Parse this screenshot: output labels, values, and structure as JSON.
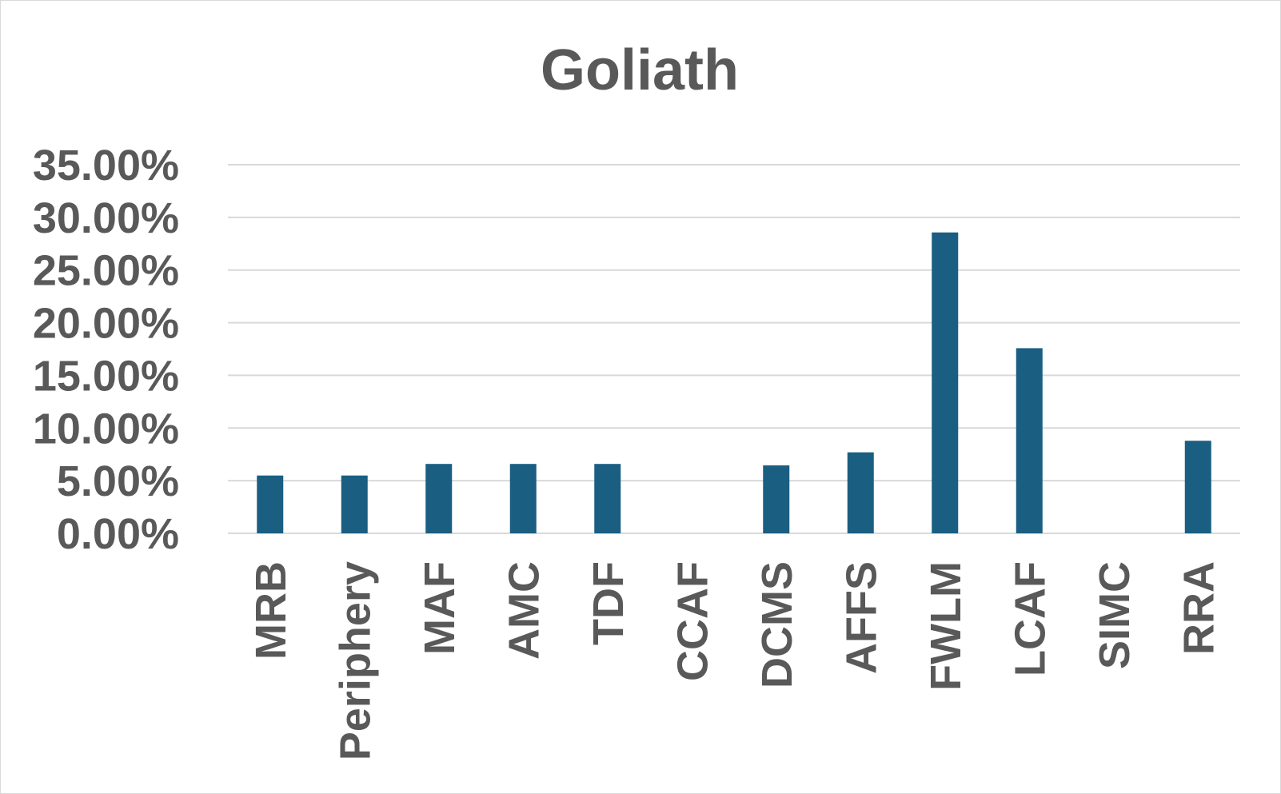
{
  "chart_data": {
    "type": "bar",
    "title": "Goliath",
    "xlabel": "",
    "ylabel": "",
    "categories": [
      "MRB",
      "Periphery",
      "MAF",
      "AMC",
      "TDF",
      "CCAF",
      "DCMS",
      "AFFS",
      "FWLM",
      "LCAF",
      "SIMC",
      "RRA"
    ],
    "values": [
      0.0549,
      0.0549,
      0.0659,
      0.0659,
      0.0659,
      0,
      0.0645,
      0.0769,
      0.2857,
      0.1758,
      0,
      0.0879
    ],
    "ylim": [
      0,
      0.35
    ],
    "yticks": [
      0,
      0.05,
      0.1,
      0.15,
      0.2,
      0.25,
      0.3,
      0.35
    ],
    "ytick_labels": [
      "0.00%",
      "5.00%",
      "10.00%",
      "15.00%",
      "20.00%",
      "25.00%",
      "30.00%",
      "35.00%"
    ],
    "grid": true,
    "legend": "none",
    "bar_color": "#1a5e82",
    "grid_color": "#d9d9d9",
    "text_color": "#595959"
  }
}
